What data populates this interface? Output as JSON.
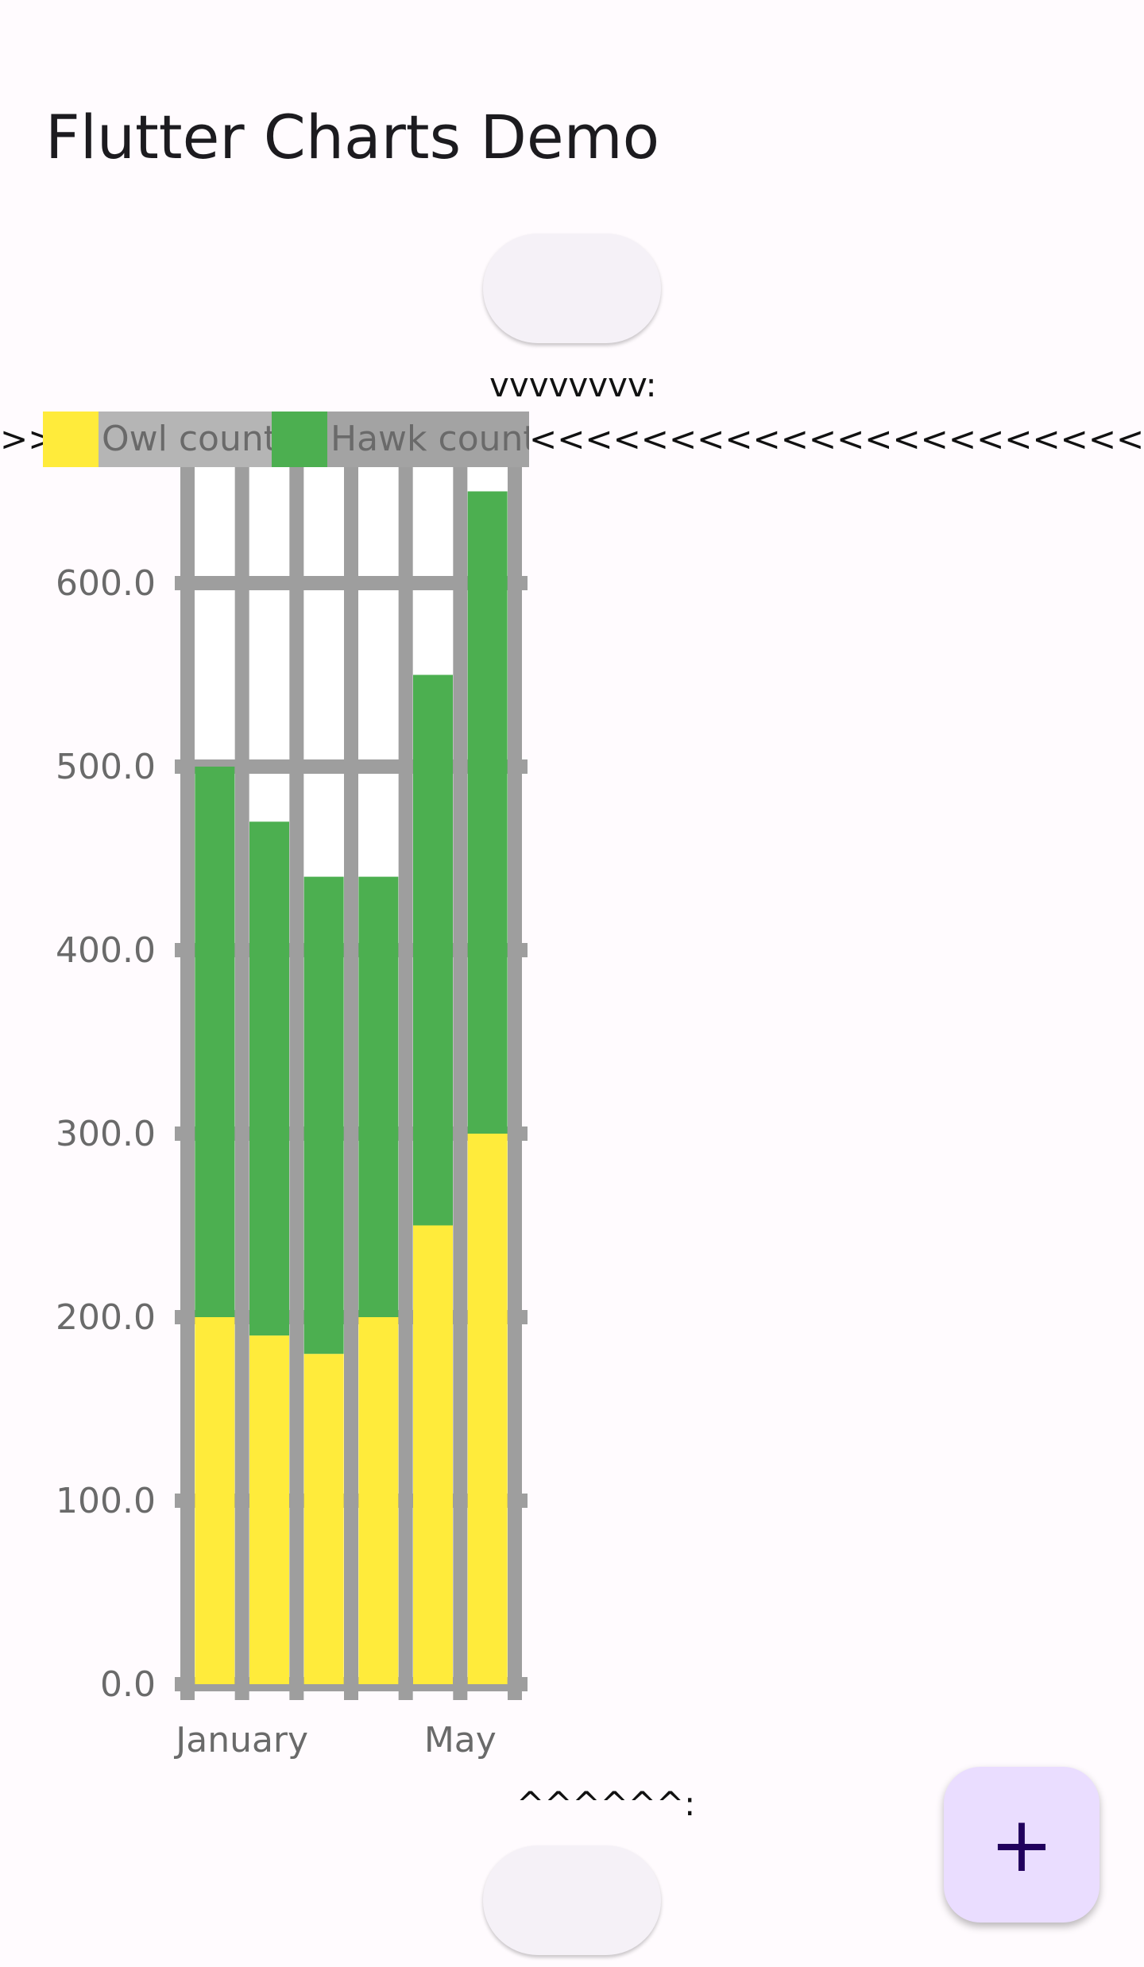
{
  "app": {
    "title": "Flutter Charts Demo",
    "top_marker": "vvvvvvvv:",
    "bottom_marker": "^^^^^^:",
    "legend_left_arrows": ">>",
    "legend_right_arrows": "<<<<<<<<<<<<<<<<<<<<<<<<<<<<<<<<<<<<<<<<<<<<<<<<<<<<",
    "fab_icon": "plus-icon",
    "fab_glyph": "+"
  },
  "colors": {
    "background": "#fffbfe",
    "owl": "#ffeb3b",
    "hawk": "#4caf50",
    "grid": "#9e9e9e",
    "legend_bg_owl": "#b5b5b5",
    "legend_bg_hawk": "#a3a3a3",
    "fab_bg": "#eaddff"
  },
  "chart_data": {
    "type": "bar",
    "stacked": true,
    "categories": [
      "January",
      "",
      "",
      "",
      "May",
      ""
    ],
    "series": [
      {
        "name": "Owl count",
        "values": [
          200,
          190,
          180,
          200,
          250,
          300
        ]
      },
      {
        "name": "Hawk count",
        "values": [
          300,
          280,
          260,
          240,
          300,
          350
        ]
      }
    ],
    "ylim": [
      0,
      650
    ],
    "yticks": [
      "0.0",
      "100.0",
      "200.0",
      "300.0",
      "400.0",
      "500.0",
      "600.0"
    ],
    "ytick_values": [
      0,
      100,
      200,
      300,
      400,
      500,
      600
    ],
    "grid": true,
    "legend_placement": "top"
  }
}
